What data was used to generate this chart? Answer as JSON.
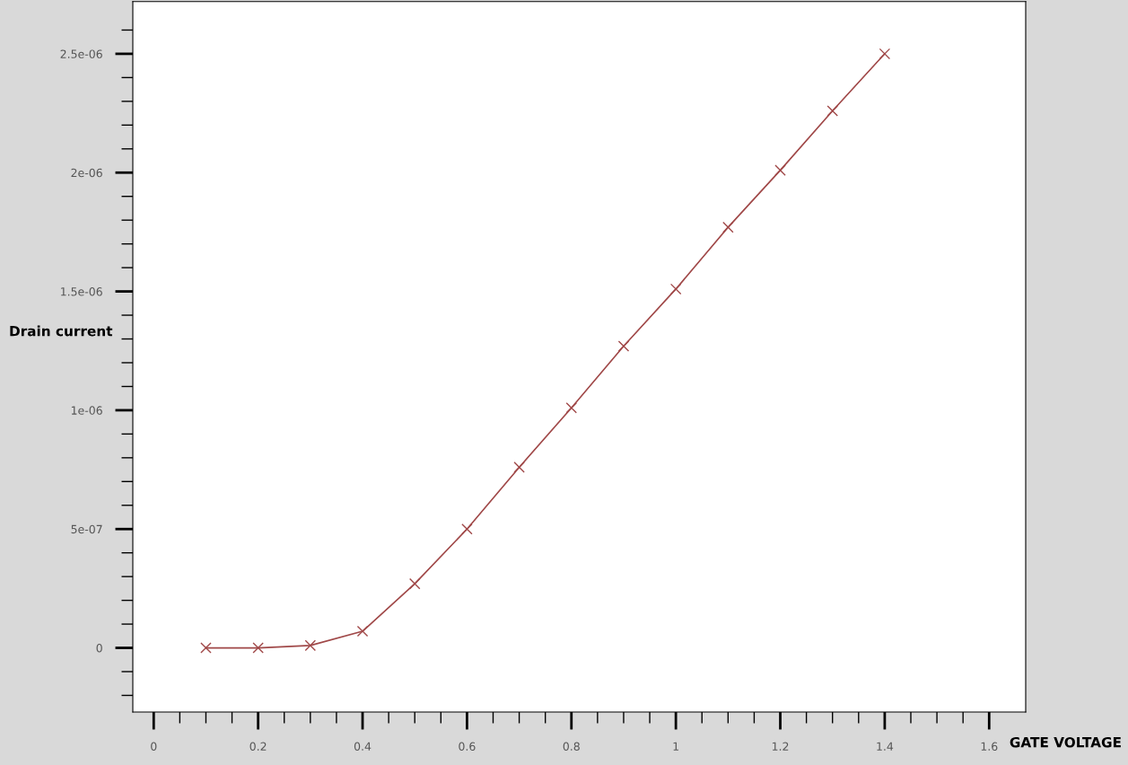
{
  "chart_data": {
    "type": "line",
    "xlabel": "GATE VOLTAGE",
    "ylabel": "Drain current",
    "x": [
      0.1,
      0.2,
      0.3,
      0.4,
      0.5,
      0.6,
      0.7,
      0.8,
      0.9,
      1.0,
      1.1,
      1.2,
      1.3,
      1.4
    ],
    "series": [
      {
        "color": "#a04848",
        "values": [
          0,
          0,
          1e-08,
          7e-08,
          2.7e-07,
          5e-07,
          7.6e-07,
          1.01e-06,
          1.27e-06,
          1.51e-06,
          1.77e-06,
          2.01e-06,
          2.26e-06,
          2.5e-06
        ]
      }
    ],
    "marker": "cross",
    "line_style": "solid",
    "grid": false,
    "legend": false,
    "xlim": [
      -0.04,
      1.67
    ],
    "ylim": [
      -2.7e-07,
      2.72e-06
    ],
    "xticks": [
      0,
      {
        "value": 0.05,
        "label": null
      },
      {
        "value": 0.1,
        "label": null
      },
      {
        "value": 0.15,
        "label": null
      },
      0.2,
      {
        "value": 0.25,
        "label": null
      },
      {
        "value": 0.3,
        "label": null
      },
      {
        "value": 0.35,
        "label": null
      },
      0.4,
      {
        "value": 0.45,
        "label": null
      },
      {
        "value": 0.5,
        "label": null
      },
      {
        "value": 0.55,
        "label": null
      },
      0.6,
      {
        "value": 0.65,
        "label": null
      },
      {
        "value": 0.7,
        "label": null
      },
      {
        "value": 0.75,
        "label": null
      },
      0.8,
      {
        "value": 0.85,
        "label": null
      },
      {
        "value": 0.9,
        "label": null
      },
      {
        "value": 0.95,
        "label": null
      },
      1,
      {
        "value": 1.05,
        "label": null
      },
      {
        "value": 1.1,
        "label": null
      },
      {
        "value": 1.15,
        "label": null
      },
      1.2,
      {
        "value": 1.25,
        "label": null
      },
      {
        "value": 1.3,
        "label": null
      },
      {
        "value": 1.35,
        "label": null
      },
      1.4,
      {
        "value": 1.45,
        "label": null
      },
      {
        "value": 1.5,
        "label": null
      },
      {
        "value": 1.55,
        "label": null
      },
      1.6
    ],
    "yticks": [
      {
        "value": -2e-07,
        "label": null
      },
      {
        "value": -1e-07,
        "label": null
      },
      0,
      {
        "value": 1e-07,
        "label": null
      },
      {
        "value": 2e-07,
        "label": null
      },
      {
        "value": 3e-07,
        "label": null
      },
      {
        "value": 4e-07,
        "label": null
      },
      {
        "value": 5e-07,
        "label": "5e-07"
      },
      {
        "value": 6e-07,
        "label": null
      },
      {
        "value": 7e-07,
        "label": null
      },
      {
        "value": 8e-07,
        "label": null
      },
      {
        "value": 9e-07,
        "label": null
      },
      {
        "value": 1e-06,
        "label": "1e-06"
      },
      {
        "value": 1.1e-06,
        "label": null
      },
      {
        "value": 1.2e-06,
        "label": null
      },
      {
        "value": 1.3e-06,
        "label": null
      },
      {
        "value": 1.4e-06,
        "label": null
      },
      {
        "value": 1.5e-06,
        "label": "1.5e-06"
      },
      {
        "value": 1.6e-06,
        "label": null
      },
      {
        "value": 1.7e-06,
        "label": null
      },
      {
        "value": 1.8e-06,
        "label": null
      },
      {
        "value": 1.9e-06,
        "label": null
      },
      {
        "value": 2e-06,
        "label": "2e-06"
      },
      {
        "value": 2.1e-06,
        "label": null
      },
      {
        "value": 2.2e-06,
        "label": null
      },
      {
        "value": 2.3e-06,
        "label": null
      },
      {
        "value": 2.4e-06,
        "label": null
      },
      {
        "value": 2.5e-06,
        "label": "2.5e-06"
      },
      {
        "value": 2.6e-06,
        "label": null
      }
    ]
  }
}
